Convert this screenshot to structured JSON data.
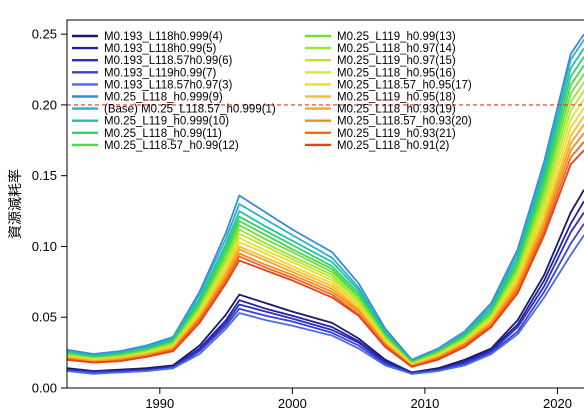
{
  "chart_data": {
    "type": "line",
    "title": "",
    "xlabel": "",
    "ylabel": "資源減耗率",
    "xlim": [
      1983,
      2022
    ],
    "ylim": [
      0,
      0.26
    ],
    "x_ticks": [
      1990,
      2000,
      2010,
      2020
    ],
    "y_ticks": [
      0.0,
      0.05,
      0.1,
      0.15,
      0.2,
      0.25
    ],
    "x_tick_labels": [
      "1990",
      "2000",
      "2010",
      "2020"
    ],
    "y_tick_labels": [
      "0.00",
      "0.05",
      "0.10",
      "0.15",
      "0.20",
      "0.25"
    ],
    "reference_line": {
      "y": 0.2,
      "color": "#e8302a",
      "style": "dashed"
    },
    "legend": {
      "placement": "top-left",
      "columns": 2
    },
    "x": [
      1983,
      1985,
      1987,
      1989,
      1991,
      1993,
      1995,
      1996,
      1998,
      2000,
      2003,
      2005,
      2007,
      2009,
      2011,
      2013,
      2015,
      2017,
      2019,
      2021,
      2022
    ],
    "series": [
      {
        "name": "M0.193_L118h0.999(4)",
        "color": "#1a1a6e",
        "values": [
          0.014,
          0.012,
          0.013,
          0.014,
          0.016,
          0.03,
          0.052,
          0.066,
          0.06,
          0.054,
          0.046,
          0.035,
          0.02,
          0.011,
          0.014,
          0.02,
          0.028,
          0.048,
          0.08,
          0.124,
          0.14
        ]
      },
      {
        "name": "M0.193_L118h0.99(5)",
        "color": "#23239a",
        "values": [
          0.013,
          0.012,
          0.012,
          0.013,
          0.015,
          0.028,
          0.048,
          0.062,
          0.056,
          0.051,
          0.043,
          0.033,
          0.019,
          0.011,
          0.013,
          0.019,
          0.027,
          0.045,
          0.076,
          0.116,
          0.132
        ]
      },
      {
        "name": "M0.193_L118.57h0.99(6)",
        "color": "#2c2cc4",
        "values": [
          0.013,
          0.011,
          0.012,
          0.013,
          0.015,
          0.027,
          0.046,
          0.059,
          0.054,
          0.049,
          0.041,
          0.032,
          0.018,
          0.01,
          0.013,
          0.018,
          0.026,
          0.043,
          0.072,
          0.11,
          0.124
        ]
      },
      {
        "name": "M0.193_L119h0.99(7)",
        "color": "#3a40d8",
        "values": [
          0.012,
          0.011,
          0.011,
          0.012,
          0.014,
          0.026,
          0.044,
          0.056,
          0.051,
          0.047,
          0.039,
          0.03,
          0.017,
          0.01,
          0.012,
          0.017,
          0.025,
          0.04,
          0.068,
          0.102,
          0.116
        ]
      },
      {
        "name": "M0.193_L118.57h0.97(3)",
        "color": "#4a6ce8",
        "values": [
          0.012,
          0.01,
          0.011,
          0.012,
          0.014,
          0.024,
          0.042,
          0.053,
          0.048,
          0.044,
          0.037,
          0.028,
          0.016,
          0.01,
          0.012,
          0.016,
          0.024,
          0.038,
          0.064,
          0.094,
          0.108
        ]
      },
      {
        "name": "M0.25_L118_h0.999(9)",
        "color": "#3a8ad8",
        "values": [
          0.027,
          0.024,
          0.026,
          0.03,
          0.036,
          0.068,
          0.11,
          0.136,
          0.124,
          0.112,
          0.096,
          0.074,
          0.042,
          0.02,
          0.028,
          0.04,
          0.06,
          0.098,
          0.16,
          0.236,
          0.25
        ]
      },
      {
        "name": "(Base) M0.25_L118.57_h0.999(1)",
        "color": "#2ab0c8",
        "values": [
          0.026,
          0.023,
          0.025,
          0.029,
          0.035,
          0.066,
          0.106,
          0.13,
          0.119,
          0.108,
          0.092,
          0.071,
          0.04,
          0.019,
          0.027,
          0.039,
          0.058,
          0.095,
          0.156,
          0.232,
          0.246
        ]
      },
      {
        "name": "M0.25_L119_h0.999(10)",
        "color": "#22c0a0",
        "values": [
          0.025,
          0.022,
          0.024,
          0.028,
          0.034,
          0.063,
          0.102,
          0.125,
          0.114,
          0.104,
          0.089,
          0.069,
          0.039,
          0.019,
          0.026,
          0.038,
          0.056,
          0.092,
          0.152,
          0.226,
          0.24
        ]
      },
      {
        "name": "M0.25_L118_h0.99(11)",
        "color": "#2ed070",
        "values": [
          0.025,
          0.022,
          0.024,
          0.027,
          0.033,
          0.061,
          0.099,
          0.121,
          0.111,
          0.101,
          0.086,
          0.067,
          0.038,
          0.018,
          0.026,
          0.037,
          0.054,
          0.089,
          0.148,
          0.22,
          0.234
        ]
      },
      {
        "name": "M0.25_L118.57_h0.99(12)",
        "color": "#48d848",
        "values": [
          0.024,
          0.021,
          0.023,
          0.027,
          0.032,
          0.059,
          0.096,
          0.118,
          0.108,
          0.098,
          0.084,
          0.065,
          0.037,
          0.018,
          0.025,
          0.036,
          0.053,
          0.087,
          0.144,
          0.214,
          0.228
        ]
      },
      {
        "name": "M0.25_L119_h0.99(13)",
        "color": "#6ee03a",
        "values": [
          0.024,
          0.021,
          0.023,
          0.026,
          0.032,
          0.058,
          0.093,
          0.115,
          0.105,
          0.096,
          0.082,
          0.064,
          0.036,
          0.018,
          0.025,
          0.035,
          0.052,
          0.085,
          0.14,
          0.208,
          0.222
        ]
      },
      {
        "name": "M0.25_L118_h0.97(14)",
        "color": "#98e632",
        "values": [
          0.023,
          0.021,
          0.022,
          0.026,
          0.031,
          0.056,
          0.091,
          0.112,
          0.102,
          0.093,
          0.08,
          0.062,
          0.035,
          0.017,
          0.024,
          0.035,
          0.051,
          0.083,
          0.136,
          0.202,
          0.216
        ]
      },
      {
        "name": "M0.25_L119_h0.97(15)",
        "color": "#bce632",
        "values": [
          0.023,
          0.02,
          0.022,
          0.025,
          0.03,
          0.055,
          0.089,
          0.109,
          0.1,
          0.091,
          0.078,
          0.061,
          0.035,
          0.017,
          0.024,
          0.034,
          0.05,
          0.081,
          0.132,
          0.196,
          0.21
        ]
      },
      {
        "name": "M0.25_L118_h0.95(16)",
        "color": "#dce432",
        "values": [
          0.022,
          0.02,
          0.021,
          0.025,
          0.03,
          0.054,
          0.086,
          0.106,
          0.097,
          0.089,
          0.076,
          0.059,
          0.034,
          0.017,
          0.023,
          0.033,
          0.049,
          0.079,
          0.128,
          0.19,
          0.204
        ]
      },
      {
        "name": "M0.25_L118.57_h0.95(17)",
        "color": "#f2d82e",
        "values": [
          0.022,
          0.02,
          0.021,
          0.024,
          0.029,
          0.052,
          0.084,
          0.103,
          0.095,
          0.086,
          0.074,
          0.058,
          0.033,
          0.016,
          0.023,
          0.033,
          0.048,
          0.077,
          0.124,
          0.184,
          0.198
        ]
      },
      {
        "name": "M0.25_L119_h0.95(18)",
        "color": "#f6c02a",
        "values": [
          0.022,
          0.019,
          0.021,
          0.024,
          0.029,
          0.051,
          0.082,
          0.1,
          0.092,
          0.084,
          0.072,
          0.056,
          0.032,
          0.016,
          0.022,
          0.032,
          0.047,
          0.075,
          0.12,
          0.178,
          0.192
        ]
      },
      {
        "name": "M0.25_L118_h0.93(19)",
        "color": "#f4a626",
        "values": [
          0.021,
          0.019,
          0.02,
          0.023,
          0.028,
          0.05,
          0.08,
          0.098,
          0.09,
          0.082,
          0.07,
          0.055,
          0.031,
          0.016,
          0.022,
          0.031,
          0.046,
          0.073,
          0.117,
          0.173,
          0.186
        ]
      },
      {
        "name": "M0.25_L118.57_h0.93(20)",
        "color": "#f28c22",
        "values": [
          0.021,
          0.018,
          0.02,
          0.023,
          0.027,
          0.049,
          0.078,
          0.095,
          0.087,
          0.08,
          0.068,
          0.054,
          0.031,
          0.015,
          0.021,
          0.031,
          0.045,
          0.071,
          0.114,
          0.168,
          0.18
        ]
      },
      {
        "name": "M0.25_L119_h0.93(21)",
        "color": "#ee6a20",
        "values": [
          0.02,
          0.018,
          0.019,
          0.022,
          0.027,
          0.048,
          0.076,
          0.093,
          0.085,
          0.078,
          0.066,
          0.052,
          0.03,
          0.015,
          0.021,
          0.03,
          0.044,
          0.069,
          0.111,
          0.163,
          0.174
        ]
      },
      {
        "name": "M0.25_L118_h0.91(2)",
        "color": "#e8401c",
        "values": [
          0.02,
          0.018,
          0.019,
          0.022,
          0.026,
          0.046,
          0.074,
          0.09,
          0.083,
          0.076,
          0.064,
          0.051,
          0.029,
          0.015,
          0.02,
          0.029,
          0.043,
          0.067,
          0.108,
          0.158,
          0.168
        ]
      }
    ]
  }
}
